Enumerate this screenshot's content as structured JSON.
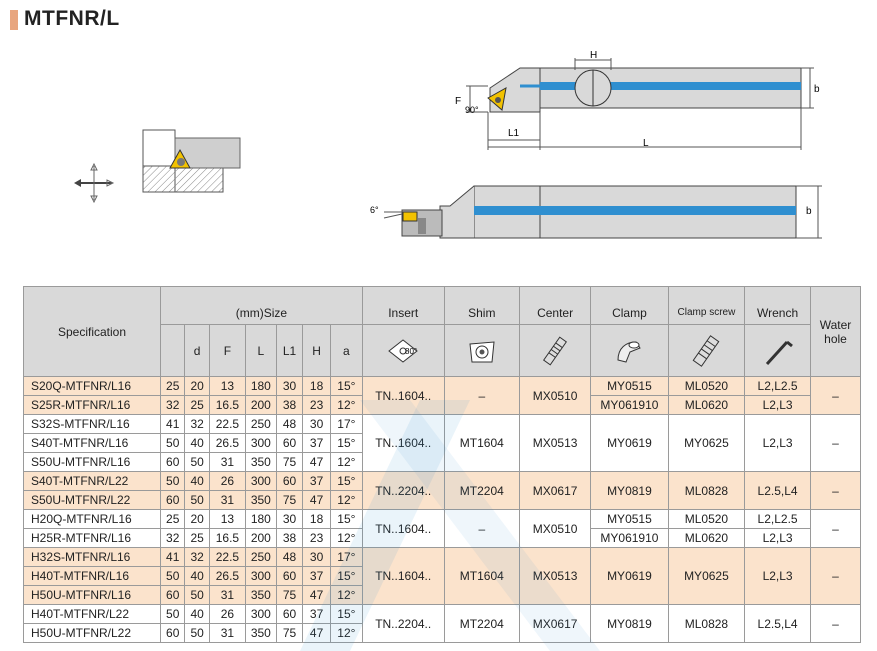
{
  "title": "MTFNR/L",
  "drawing": {
    "dim_H": "H",
    "dim_F": "F",
    "dim_b": "b",
    "dim_L1": "L1",
    "dim_L": "L",
    "angle_90": "90°",
    "angle_6": "6°"
  },
  "table": {
    "spec_header": "Specification",
    "size_header": "(mm)Size",
    "size_cols": [
      "d",
      "F",
      "L",
      "L1",
      "H",
      "a"
    ],
    "insert_header": "Insert",
    "insert_angle": "80°",
    "shim_header": "Shim",
    "center_header": "Center",
    "clamp_header": "Clamp",
    "clampscrew_header": "Clamp screw",
    "wrench_header": "Wrench",
    "water_header": "Water hole",
    "rows": [
      {
        "model": "S20Q-MTFNR/L16",
        "D": "25",
        "d": "20",
        "F": "13",
        "L": "180",
        "L1": "30",
        "H": "18",
        "a": "15°"
      },
      {
        "model": "S25R-MTFNR/L16",
        "D": "32",
        "d": "25",
        "F": "16.5",
        "L": "200",
        "L1": "38",
        "H": "23",
        "a": "12°"
      },
      {
        "model": "S32S-MTFNR/L16",
        "D": "41",
        "d": "32",
        "F": "22.5",
        "L": "250",
        "L1": "48",
        "H": "30",
        "a": "17°"
      },
      {
        "model": "S40T-MTFNR/L16",
        "D": "50",
        "d": "40",
        "F": "26.5",
        "L": "300",
        "L1": "60",
        "H": "37",
        "a": "15°"
      },
      {
        "model": "S50U-MTFNR/L16",
        "D": "60",
        "d": "50",
        "F": "31",
        "L": "350",
        "L1": "75",
        "H": "47",
        "a": "12°"
      },
      {
        "model": "S40T-MTFNR/L22",
        "D": "50",
        "d": "40",
        "F": "26",
        "L": "300",
        "L1": "60",
        "H": "37",
        "a": "15°"
      },
      {
        "model": "S50U-MTFNR/L22",
        "D": "60",
        "d": "50",
        "F": "31",
        "L": "350",
        "L1": "75",
        "H": "47",
        "a": "12°"
      },
      {
        "model": "H20Q-MTFNR/L16",
        "D": "25",
        "d": "20",
        "F": "13",
        "L": "180",
        "L1": "30",
        "H": "18",
        "a": "15°"
      },
      {
        "model": "H25R-MTFNR/L16",
        "D": "32",
        "d": "25",
        "F": "16.5",
        "L": "200",
        "L1": "38",
        "H": "23",
        "a": "12°"
      },
      {
        "model": "H32S-MTFNR/L16",
        "D": "41",
        "d": "32",
        "F": "22.5",
        "L": "250",
        "L1": "48",
        "H": "30",
        "a": "17°"
      },
      {
        "model": "H40T-MTFNR/L16",
        "D": "50",
        "d": "40",
        "F": "26.5",
        "L": "300",
        "L1": "60",
        "H": "37",
        "a": "15°"
      },
      {
        "model": "H50U-MTFNR/L16",
        "D": "60",
        "d": "50",
        "F": "31",
        "L": "350",
        "L1": "75",
        "H": "47",
        "a": "12°"
      },
      {
        "model": "H40T-MTFNR/L22",
        "D": "50",
        "d": "40",
        "F": "26",
        "L": "300",
        "L1": "60",
        "H": "37",
        "a": "15°"
      },
      {
        "model": "H50U-MTFNR/L22",
        "D": "60",
        "d": "50",
        "F": "31",
        "L": "350",
        "L1": "75",
        "H": "47",
        "a": "12°"
      }
    ],
    "groups": [
      {
        "insert": "TN..1604..",
        "shim": "–",
        "center": "MX0510",
        "clamp": [
          "MY0515",
          "MY061910"
        ],
        "clampscrew": [
          "ML0520",
          "ML0620"
        ],
        "wrench": [
          "L2,L2.5",
          "L2,L3"
        ],
        "water": "–"
      },
      {
        "insert": "TN..1604..",
        "shim": "MT1604",
        "center": "MX0513",
        "clamp": [
          "MY0619"
        ],
        "clampscrew": [
          "MY0625"
        ],
        "wrench": [
          "L2,L3"
        ],
        "water": "–"
      },
      {
        "insert": "TN..2204..",
        "shim": "MT2204",
        "center": "MX0617",
        "clamp": [
          "MY0819"
        ],
        "clampscrew": [
          "ML0828"
        ],
        "wrench": [
          "L2.5,L4"
        ],
        "water": "–"
      },
      {
        "insert": "TN..1604..",
        "shim": "–",
        "center": "MX0510",
        "clamp": [
          "MY0515",
          "MY061910"
        ],
        "clampscrew": [
          "ML0520",
          "ML0620"
        ],
        "wrench": [
          "L2,L2.5",
          "L2,L3"
        ],
        "water": "–"
      },
      {
        "insert": "TN..1604..",
        "shim": "MT1604",
        "center": "MX0513",
        "clamp": [
          "MY0619"
        ],
        "clampscrew": [
          "MY0625"
        ],
        "wrench": [
          "L2,L3"
        ],
        "water": "–"
      },
      {
        "insert": "TN..2204..",
        "shim": "MT2204",
        "center": "MX0617",
        "clamp": [
          "MY0819"
        ],
        "clampscrew": [
          "ML0828"
        ],
        "wrench": [
          "L2.5,L4"
        ],
        "water": "–"
      }
    ]
  },
  "colors": {
    "accent": "#e8a57e",
    "row_orange": "#fbe3cc",
    "coolant_blue": "#2f8fd0",
    "insert_yellow": "#f2c200"
  }
}
